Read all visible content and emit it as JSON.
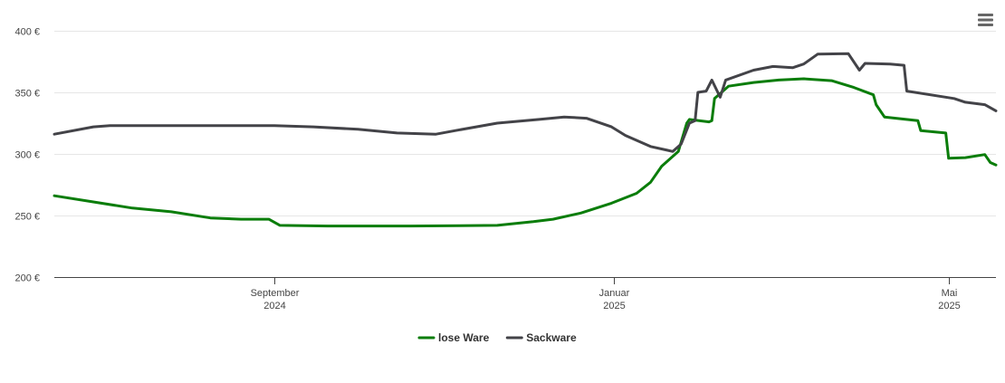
{
  "chart_data": {
    "type": "line",
    "title": "",
    "xlabel": "",
    "ylabel": "",
    "ylim": [
      200,
      400
    ],
    "y_ticks": [
      "200 €",
      "250 €",
      "300 €",
      "350 €",
      "400 €"
    ],
    "y_tick_values": [
      200,
      250,
      300,
      350,
      400
    ],
    "x_range": [
      "2024-06-14",
      "2025-05-18"
    ],
    "x_ticks": [
      {
        "date": "2024-09-01",
        "month": "September",
        "year": "2024"
      },
      {
        "date": "2025-01-01",
        "month": "Januar",
        "year": "2025"
      },
      {
        "date": "2025-05-01",
        "month": "Mai",
        "year": "2025"
      }
    ],
    "grid": true,
    "legend_position": "bottom-center",
    "series": [
      {
        "name": "lose Ware",
        "color": "#0a7d0a",
        "points": [
          [
            "2024-06-14",
            266
          ],
          [
            "2024-06-28",
            261
          ],
          [
            "2024-07-12",
            256
          ],
          [
            "2024-07-26",
            253
          ],
          [
            "2024-08-09",
            248
          ],
          [
            "2024-08-20",
            247
          ],
          [
            "2024-08-30",
            247
          ],
          [
            "2024-09-03",
            242
          ],
          [
            "2024-09-20",
            241.5
          ],
          [
            "2024-10-20",
            241.5
          ],
          [
            "2024-11-20",
            242
          ],
          [
            "2024-12-03",
            245
          ],
          [
            "2024-12-10",
            247
          ],
          [
            "2024-12-20",
            252
          ],
          [
            "2024-12-31",
            260
          ],
          [
            "2025-01-09",
            268
          ],
          [
            "2025-01-14",
            277
          ],
          [
            "2025-01-18",
            290
          ],
          [
            "2025-01-24",
            302
          ],
          [
            "2025-01-27",
            325
          ],
          [
            "2025-01-28",
            328
          ],
          [
            "2025-02-04",
            326
          ],
          [
            "2025-02-05",
            327
          ],
          [
            "2025-02-06",
            345
          ],
          [
            "2025-02-11",
            355
          ],
          [
            "2025-02-20",
            358
          ],
          [
            "2025-03-01",
            360
          ],
          [
            "2025-03-10",
            361
          ],
          [
            "2025-03-20",
            359.5
          ],
          [
            "2025-03-28",
            354
          ],
          [
            "2025-04-04",
            348
          ],
          [
            "2025-04-05",
            340
          ],
          [
            "2025-04-08",
            330
          ],
          [
            "2025-04-20",
            327
          ],
          [
            "2025-04-21",
            319
          ],
          [
            "2025-04-30",
            317
          ],
          [
            "2025-05-01",
            296.5
          ],
          [
            "2025-05-07",
            297
          ],
          [
            "2025-05-14",
            299.5
          ],
          [
            "2025-05-16",
            293
          ],
          [
            "2025-05-18",
            291
          ]
        ]
      },
      {
        "name": "Sackware",
        "color": "#434348",
        "points": [
          [
            "2024-06-14",
            316
          ],
          [
            "2024-06-28",
            322
          ],
          [
            "2024-07-04",
            323
          ],
          [
            "2024-08-01",
            323
          ],
          [
            "2024-09-01",
            323
          ],
          [
            "2024-09-15",
            322
          ],
          [
            "2024-10-01",
            320
          ],
          [
            "2024-10-15",
            317
          ],
          [
            "2024-10-29",
            316
          ],
          [
            "2024-11-05",
            319
          ],
          [
            "2024-11-20",
            325
          ],
          [
            "2024-12-05",
            328
          ],
          [
            "2024-12-14",
            330
          ],
          [
            "2024-12-22",
            329
          ],
          [
            "2024-12-31",
            322
          ],
          [
            "2025-01-05",
            315
          ],
          [
            "2025-01-14",
            306
          ],
          [
            "2025-01-20",
            303
          ],
          [
            "2025-01-22",
            302
          ],
          [
            "2025-01-25",
            308
          ],
          [
            "2025-01-28",
            325
          ],
          [
            "2025-01-30",
            327
          ],
          [
            "2025-01-31",
            350
          ],
          [
            "2025-02-03",
            351
          ],
          [
            "2025-02-05",
            360
          ],
          [
            "2025-02-08",
            346
          ],
          [
            "2025-02-10",
            360
          ],
          [
            "2025-02-20",
            368
          ],
          [
            "2025-02-27",
            371
          ],
          [
            "2025-03-06",
            370
          ],
          [
            "2025-03-10",
            373
          ],
          [
            "2025-03-15",
            381
          ],
          [
            "2025-03-26",
            381.5
          ],
          [
            "2025-03-30",
            368
          ],
          [
            "2025-04-01",
            373.5
          ],
          [
            "2025-04-10",
            373
          ],
          [
            "2025-04-15",
            372
          ],
          [
            "2025-04-16",
            351
          ],
          [
            "2025-05-03",
            345
          ],
          [
            "2025-05-07",
            342
          ],
          [
            "2025-05-14",
            340
          ],
          [
            "2025-05-18",
            335
          ]
        ]
      }
    ]
  },
  "menu": {
    "icon": "hamburger-menu-icon"
  }
}
